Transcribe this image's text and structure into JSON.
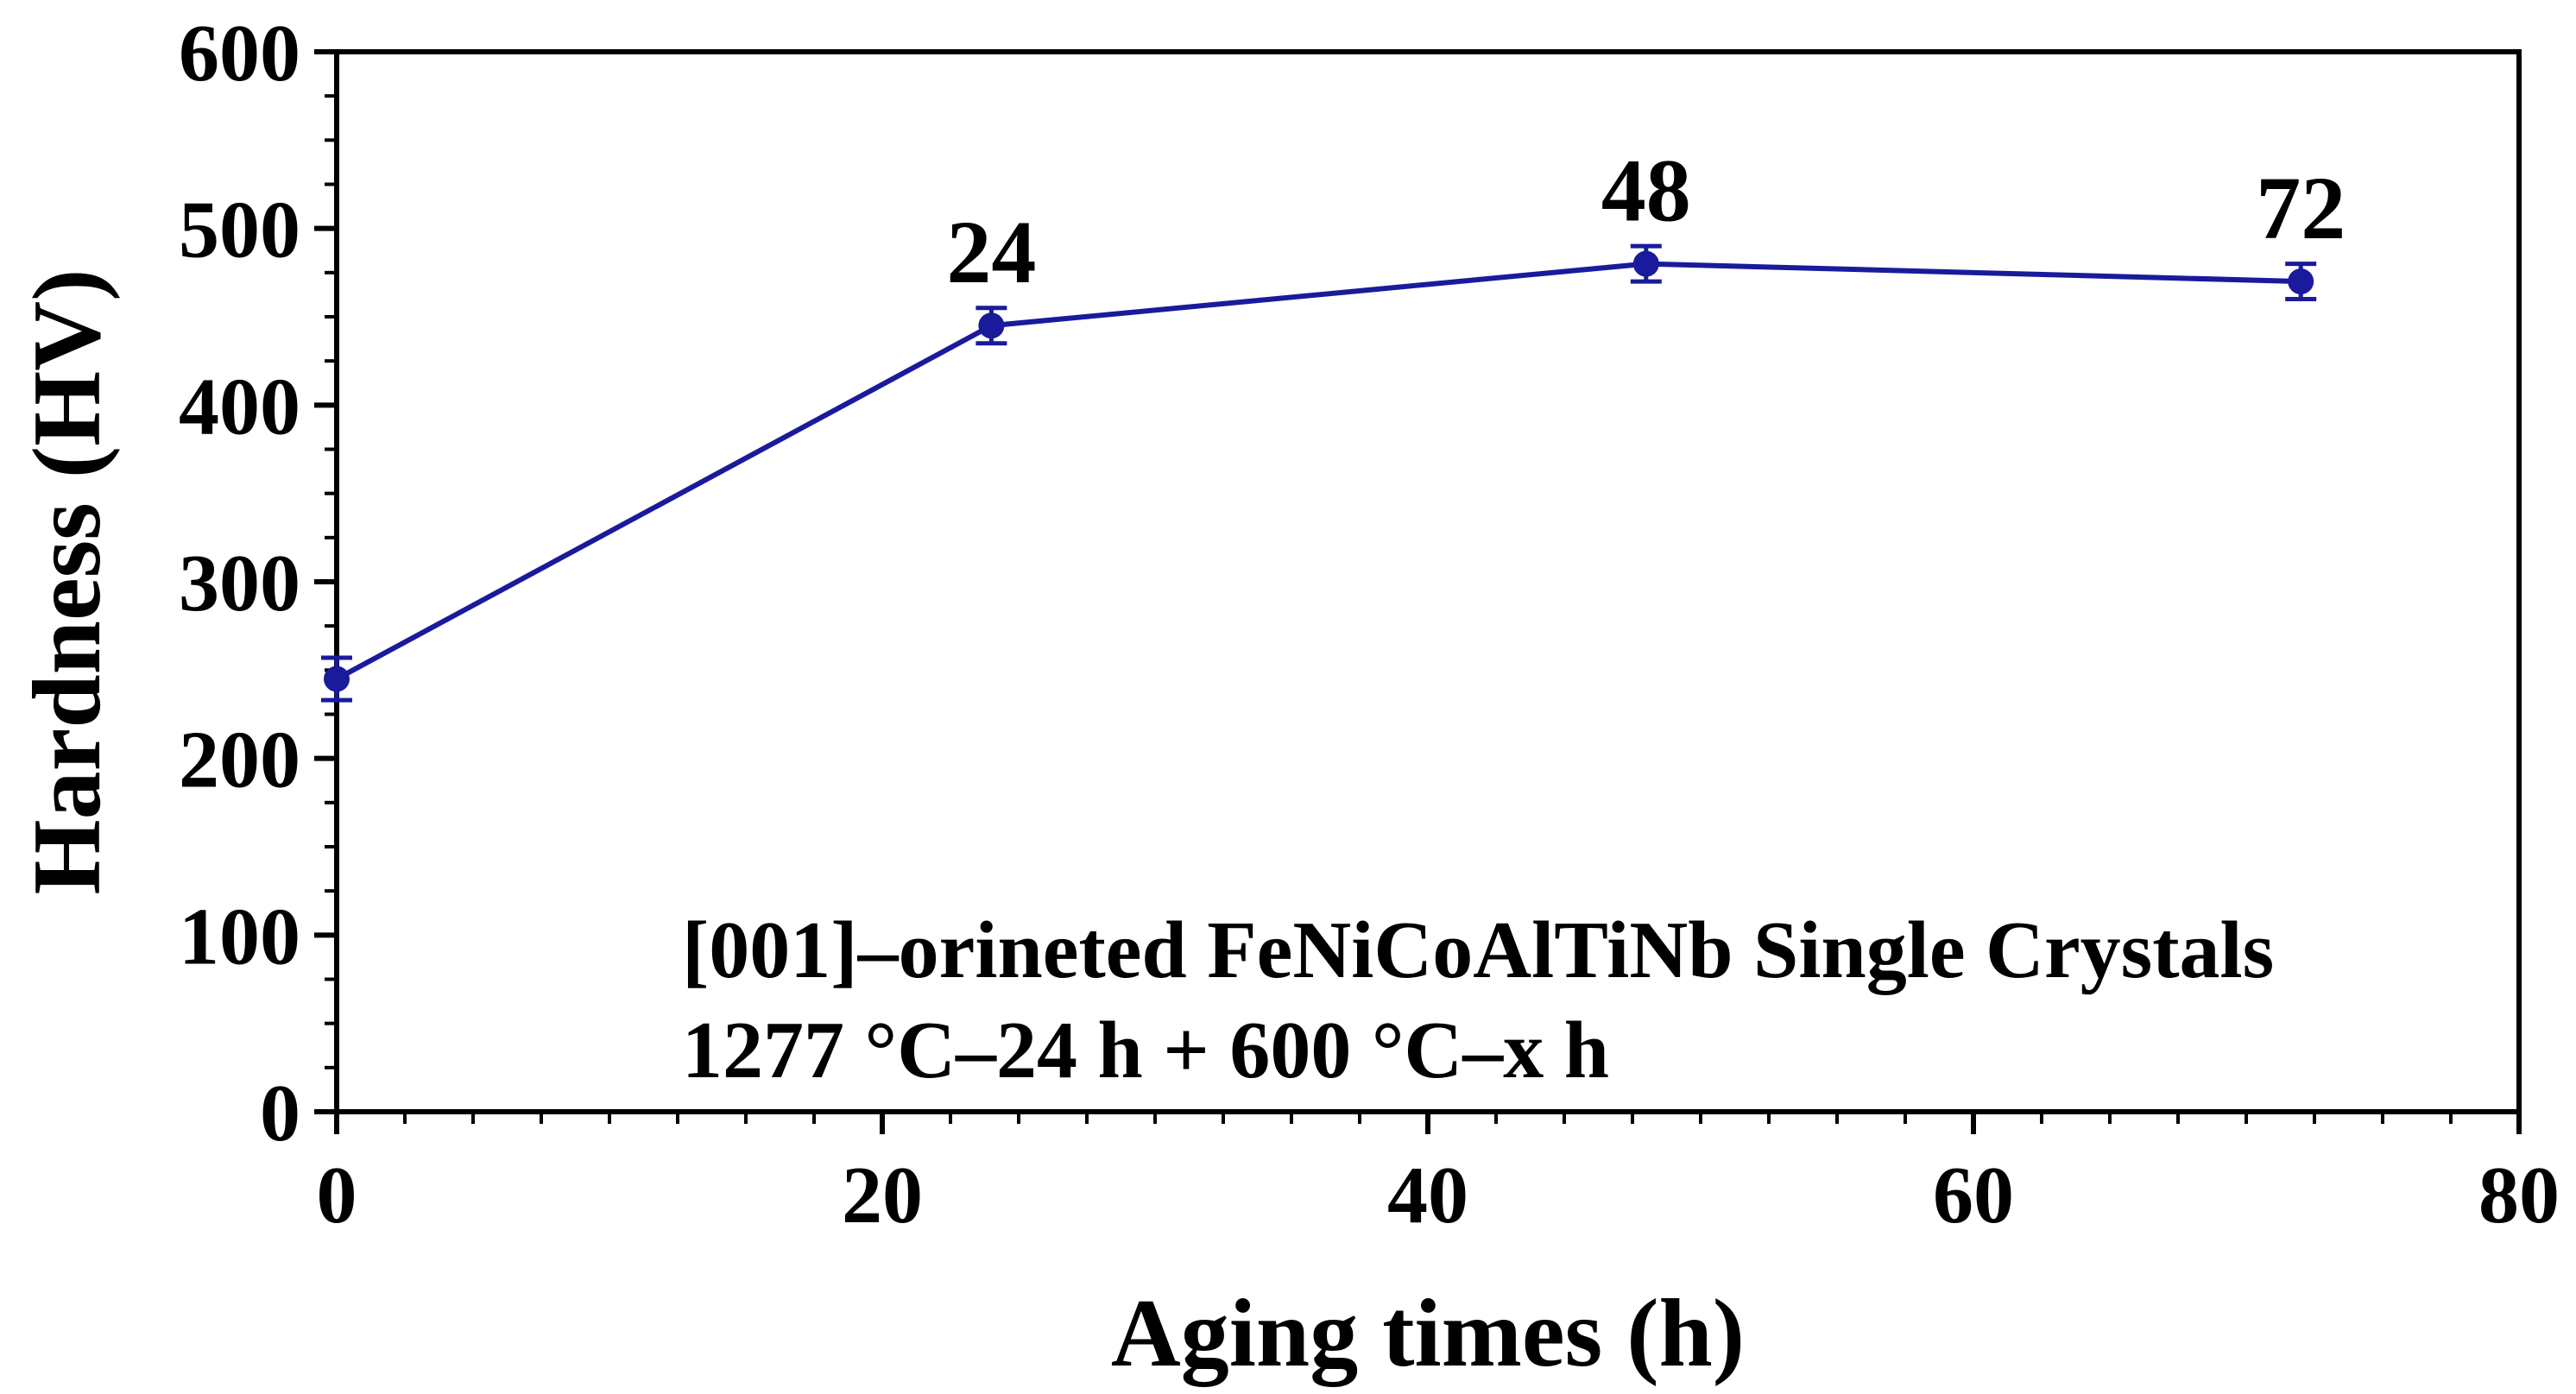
{
  "chart_data": {
    "type": "line",
    "xlabel": "Aging times (h)",
    "ylabel": "Hardness (HV)",
    "xlim": [
      0,
      80
    ],
    "ylim": [
      0,
      600
    ],
    "x_ticks": [
      "0",
      "20",
      "40",
      "60",
      "80"
    ],
    "y_ticks": [
      "0",
      "100",
      "200",
      "300",
      "400",
      "500",
      "600"
    ],
    "grid": false,
    "series": [
      {
        "x": [
          0,
          24,
          48,
          72
        ],
        "values": [
          245,
          445,
          480,
          470
        ],
        "errors": [
          12,
          10,
          10,
          10
        ],
        "color": "#1a1a9c",
        "marker": "circle"
      }
    ],
    "point_labels": [
      {
        "x": 24,
        "y": 445,
        "text": "24"
      },
      {
        "x": 48,
        "y": 480,
        "text": "48"
      },
      {
        "x": 72,
        "y": 470,
        "text": "72"
      }
    ],
    "annotations": [
      "[001]–orineted FeNiCoAlTiNb Single Crystals",
      "1277 °C–24 h + 600 °C–x h"
    ]
  }
}
